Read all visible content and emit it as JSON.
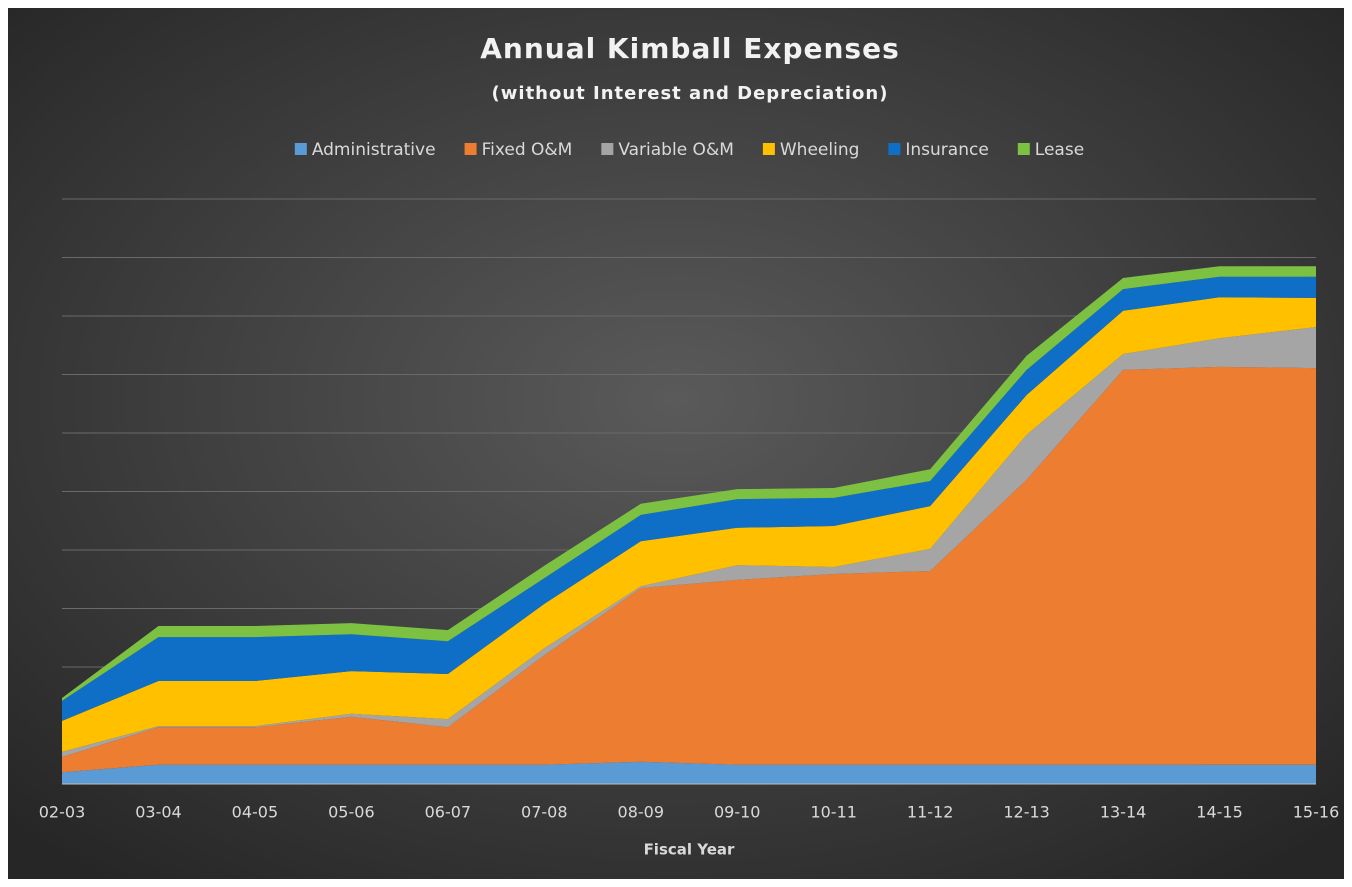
{
  "chart_data": {
    "type": "area",
    "stacked": true,
    "title": "Annual Kimball Expenses",
    "subtitle": "(without Interest and Depreciation)",
    "x_label": "Fiscal Year",
    "categories": [
      "02-03",
      "03-04",
      "04-05",
      "05-06",
      "06-07",
      "07-08",
      "08-09",
      "09-10",
      "10-11",
      "11-12",
      "12-13",
      "13-14",
      "14-15",
      "15-16"
    ],
    "series": [
      {
        "name": "Administrative",
        "color": "#5b9bd5",
        "values": [
          0.2,
          0.33,
          0.33,
          0.33,
          0.33,
          0.33,
          0.38,
          0.33,
          0.33,
          0.33,
          0.33,
          0.33,
          0.33,
          0.33
        ]
      },
      {
        "name": "Fixed O&M",
        "color": "#ed7d31",
        "values": [
          0.26,
          0.64,
          0.64,
          0.82,
          0.64,
          1.87,
          2.97,
          3.16,
          3.26,
          3.31,
          4.87,
          6.75,
          6.8,
          6.78
        ]
      },
      {
        "name": "Variable O&M",
        "color": "#a5a5a5",
        "values": [
          0.09,
          0.02,
          0.02,
          0.05,
          0.14,
          0.12,
          0.03,
          0.25,
          0.12,
          0.38,
          0.77,
          0.27,
          0.49,
          0.7
        ]
      },
      {
        "name": "Wheeling",
        "color": "#ffc000",
        "values": [
          0.53,
          0.77,
          0.77,
          0.73,
          0.77,
          0.76,
          0.77,
          0.64,
          0.7,
          0.73,
          0.68,
          0.74,
          0.7,
          0.5
        ]
      },
      {
        "name": "Insurance",
        "color": "#0f6fc6",
        "values": [
          0.34,
          0.75,
          0.75,
          0.63,
          0.56,
          0.44,
          0.45,
          0.49,
          0.48,
          0.43,
          0.43,
          0.37,
          0.35,
          0.36
        ]
      },
      {
        "name": "Lease",
        "color": "#7dc142",
        "values": [
          0.05,
          0.19,
          0.19,
          0.19,
          0.19,
          0.21,
          0.19,
          0.17,
          0.17,
          0.2,
          0.24,
          0.19,
          0.18,
          0.18
        ]
      }
    ],
    "ylim": [
      0,
      10
    ],
    "yticks": [
      1,
      2,
      3,
      4,
      5,
      6,
      7,
      8,
      9,
      10
    ],
    "grid": true,
    "legend": "top"
  }
}
